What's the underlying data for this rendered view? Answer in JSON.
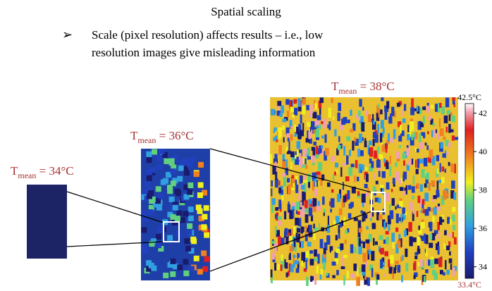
{
  "title": "Spatial scaling",
  "bullet": {
    "lines": [
      "Scale (pixel resolution) affects results – i.e., low",
      "resolution images give misleading information"
    ]
  },
  "panels": [
    {
      "symbol": "T",
      "subscript": "mean",
      "value": " = 34°C"
    },
    {
      "symbol": "T",
      "subscript": "mean",
      "value": " = 36°C"
    },
    {
      "symbol": "T",
      "subscript": "mean",
      "value": " = 38°C"
    }
  ],
  "colorbar": {
    "max": {
      "value": 42.5,
      "label": "42.5°C"
    },
    "min": {
      "value": 33.4,
      "label": "33.4°C"
    },
    "ticks": [
      42,
      40,
      38,
      36,
      34
    ]
  }
}
